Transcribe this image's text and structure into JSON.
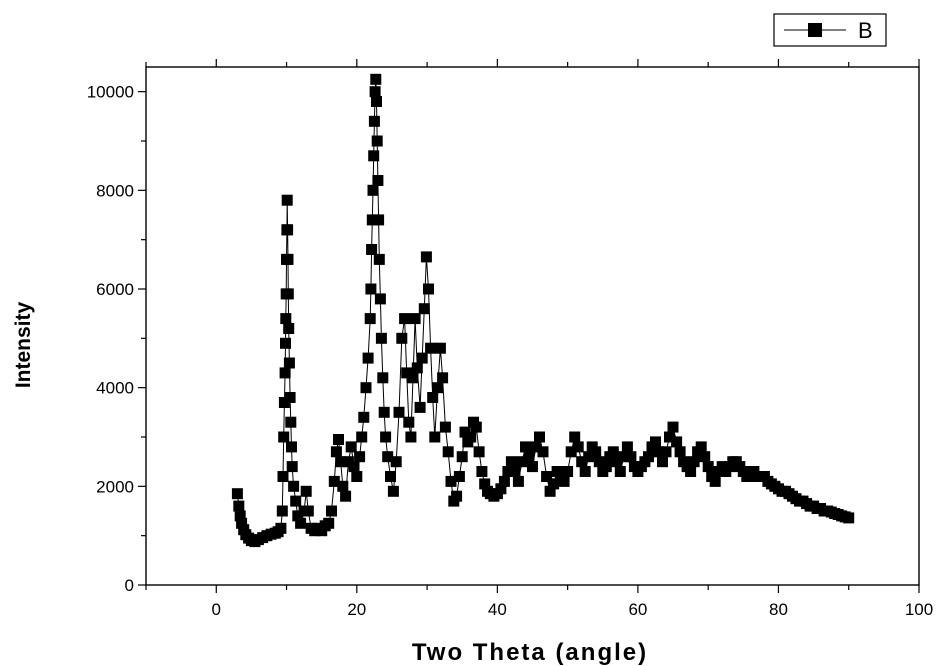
{
  "chart_data": {
    "type": "scatter",
    "title": "",
    "xlabel": "Two Theta (angle)",
    "ylabel": "Intensity",
    "xlim": [
      -10,
      100
    ],
    "ylim": [
      0,
      10500
    ],
    "xticks": [
      0,
      20,
      40,
      60,
      80,
      100
    ],
    "yticks": [
      0,
      2000,
      4000,
      6000,
      8000,
      10000
    ],
    "x_minor_step": 10,
    "y_minor_step": 1000,
    "grid": false,
    "legend": {
      "position": "top-right",
      "entries": [
        "B"
      ]
    },
    "marker": "filled-square",
    "line_style": "thin-connecting",
    "color": "#000000",
    "series": [
      {
        "name": "B",
        "points": [
          [
            3.0,
            1850
          ],
          [
            3.2,
            1600
          ],
          [
            3.4,
            1400
          ],
          [
            3.6,
            1250
          ],
          [
            3.9,
            1120
          ],
          [
            4.2,
            1020
          ],
          [
            4.6,
            950
          ],
          [
            5.0,
            900
          ],
          [
            5.5,
            880
          ],
          [
            6.0,
            920
          ],
          [
            6.6,
            960
          ],
          [
            7.2,
            1000
          ],
          [
            7.8,
            1030
          ],
          [
            8.4,
            1050
          ],
          [
            8.8,
            1080
          ],
          [
            9.2,
            1150
          ],
          [
            9.4,
            1500
          ],
          [
            9.5,
            2200
          ],
          [
            9.6,
            3000
          ],
          [
            9.7,
            3700
          ],
          [
            9.8,
            4300
          ],
          [
            9.85,
            4900
          ],
          [
            9.9,
            5400
          ],
          [
            9.95,
            5900
          ],
          [
            10.0,
            6600
          ],
          [
            10.05,
            7200
          ],
          [
            10.1,
            7800
          ],
          [
            10.15,
            7200
          ],
          [
            10.2,
            6600
          ],
          [
            10.25,
            5900
          ],
          [
            10.3,
            5200
          ],
          [
            10.4,
            4500
          ],
          [
            10.5,
            3800
          ],
          [
            10.6,
            3300
          ],
          [
            10.7,
            2800
          ],
          [
            10.8,
            2400
          ],
          [
            11.0,
            2000
          ],
          [
            11.3,
            1700
          ],
          [
            11.6,
            1400
          ],
          [
            12.0,
            1250
          ],
          [
            12.5,
            1500
          ],
          [
            12.8,
            1900
          ],
          [
            13.1,
            1500
          ],
          [
            13.5,
            1150
          ],
          [
            14.0,
            1100
          ],
          [
            14.5,
            1150
          ],
          [
            15.0,
            1100
          ],
          [
            15.5,
            1200
          ],
          [
            16.0,
            1250
          ],
          [
            16.4,
            1500
          ],
          [
            16.8,
            2100
          ],
          [
            17.1,
            2700
          ],
          [
            17.4,
            2950
          ],
          [
            17.7,
            2500
          ],
          [
            18.0,
            2000
          ],
          [
            18.4,
            1800
          ],
          [
            18.8,
            2500
          ],
          [
            19.2,
            2800
          ],
          [
            19.6,
            2400
          ],
          [
            20.0,
            2200
          ],
          [
            20.4,
            2600
          ],
          [
            20.7,
            3000
          ],
          [
            21.0,
            3400
          ],
          [
            21.3,
            4000
          ],
          [
            21.6,
            4600
          ],
          [
            21.9,
            5400
          ],
          [
            22.0,
            6000
          ],
          [
            22.1,
            6800
          ],
          [
            22.2,
            7400
          ],
          [
            22.3,
            8000
          ],
          [
            22.4,
            8700
          ],
          [
            22.5,
            9400
          ],
          [
            22.6,
            10000
          ],
          [
            22.7,
            10250
          ],
          [
            22.8,
            9800
          ],
          [
            22.9,
            9000
          ],
          [
            23.0,
            8200
          ],
          [
            23.1,
            7400
          ],
          [
            23.2,
            6600
          ],
          [
            23.35,
            5800
          ],
          [
            23.5,
            5000
          ],
          [
            23.7,
            4200
          ],
          [
            23.9,
            3500
          ],
          [
            24.1,
            3000
          ],
          [
            24.4,
            2600
          ],
          [
            24.8,
            2200
          ],
          [
            25.2,
            1900
          ],
          [
            25.6,
            2500
          ],
          [
            26.0,
            3500
          ],
          [
            26.4,
            5000
          ],
          [
            26.8,
            5400
          ],
          [
            27.1,
            4300
          ],
          [
            27.4,
            3300
          ],
          [
            27.7,
            3000
          ],
          [
            28.0,
            4200
          ],
          [
            28.3,
            5400
          ],
          [
            28.6,
            4400
          ],
          [
            29.0,
            3600
          ],
          [
            29.3,
            4600
          ],
          [
            29.6,
            5600
          ],
          [
            29.9,
            6650
          ],
          [
            30.2,
            6000
          ],
          [
            30.5,
            4800
          ],
          [
            30.8,
            3800
          ],
          [
            31.1,
            3000
          ],
          [
            31.5,
            4000
          ],
          [
            31.9,
            4800
          ],
          [
            32.2,
            4200
          ],
          [
            32.6,
            3200
          ],
          [
            33.0,
            2700
          ],
          [
            33.4,
            2100
          ],
          [
            33.8,
            1700
          ],
          [
            34.2,
            1800
          ],
          [
            34.6,
            2200
          ],
          [
            35.0,
            2600
          ],
          [
            35.4,
            3100
          ],
          [
            35.8,
            2900
          ],
          [
            36.2,
            3000
          ],
          [
            36.6,
            3300
          ],
          [
            37.0,
            3200
          ],
          [
            37.4,
            2700
          ],
          [
            37.8,
            2300
          ],
          [
            38.2,
            2050
          ],
          [
            38.6,
            1900
          ],
          [
            39.0,
            1850
          ],
          [
            39.5,
            1800
          ],
          [
            40.0,
            1850
          ],
          [
            40.5,
            1950
          ],
          [
            41.0,
            2100
          ],
          [
            41.5,
            2300
          ],
          [
            42.0,
            2500
          ],
          [
            42.5,
            2300
          ],
          [
            43.0,
            2100
          ],
          [
            43.5,
            2500
          ],
          [
            44.0,
            2800
          ],
          [
            44.5,
            2600
          ],
          [
            45.0,
            2400
          ],
          [
            45.5,
            2800
          ],
          [
            46.0,
            3000
          ],
          [
            46.5,
            2700
          ],
          [
            47.0,
            2200
          ],
          [
            47.5,
            1900
          ],
          [
            48.0,
            2050
          ],
          [
            48.5,
            2300
          ],
          [
            49.0,
            2200
          ],
          [
            49.5,
            2100
          ],
          [
            50.0,
            2300
          ],
          [
            50.5,
            2700
          ],
          [
            51.0,
            3000
          ],
          [
            51.5,
            2800
          ],
          [
            52.0,
            2500
          ],
          [
            52.5,
            2300
          ],
          [
            53.0,
            2600
          ],
          [
            53.5,
            2800
          ],
          [
            54.0,
            2700
          ],
          [
            54.5,
            2500
          ],
          [
            55.0,
            2300
          ],
          [
            55.5,
            2400
          ],
          [
            56.0,
            2600
          ],
          [
            56.5,
            2700
          ],
          [
            57.0,
            2500
          ],
          [
            57.5,
            2300
          ],
          [
            58.0,
            2600
          ],
          [
            58.5,
            2800
          ],
          [
            59.0,
            2600
          ],
          [
            59.5,
            2400
          ],
          [
            60.0,
            2300
          ],
          [
            60.5,
            2400
          ],
          [
            61.0,
            2500
          ],
          [
            61.5,
            2600
          ],
          [
            62.0,
            2800
          ],
          [
            62.5,
            2900
          ],
          [
            63.0,
            2700
          ],
          [
            63.5,
            2500
          ],
          [
            64.0,
            2700
          ],
          [
            64.5,
            3000
          ],
          [
            65.0,
            3200
          ],
          [
            65.5,
            2900
          ],
          [
            66.0,
            2700
          ],
          [
            66.5,
            2500
          ],
          [
            67.0,
            2400
          ],
          [
            67.5,
            2300
          ],
          [
            68.0,
            2500
          ],
          [
            68.5,
            2700
          ],
          [
            69.0,
            2800
          ],
          [
            69.5,
            2600
          ],
          [
            70.0,
            2400
          ],
          [
            70.5,
            2200
          ],
          [
            71.0,
            2100
          ],
          [
            71.5,
            2300
          ],
          [
            72.0,
            2400
          ],
          [
            72.5,
            2300
          ],
          [
            73.0,
            2400
          ],
          [
            73.5,
            2500
          ],
          [
            74.0,
            2500
          ],
          [
            74.5,
            2400
          ],
          [
            75.0,
            2300
          ],
          [
            75.5,
            2200
          ],
          [
            76.0,
            2300
          ],
          [
            76.5,
            2300
          ],
          [
            77.0,
            2200
          ],
          [
            77.5,
            2200
          ],
          [
            78.0,
            2200
          ],
          [
            78.5,
            2100
          ],
          [
            79.0,
            2050
          ],
          [
            79.5,
            2000
          ],
          [
            80.0,
            1950
          ],
          [
            80.5,
            1900
          ],
          [
            81.0,
            1900
          ],
          [
            81.5,
            1850
          ],
          [
            82.0,
            1800
          ],
          [
            82.5,
            1750
          ],
          [
            83.0,
            1700
          ],
          [
            83.5,
            1700
          ],
          [
            84.0,
            1650
          ],
          [
            84.5,
            1600
          ],
          [
            85.0,
            1600
          ],
          [
            85.5,
            1550
          ],
          [
            86.0,
            1550
          ],
          [
            86.5,
            1500
          ],
          [
            87.0,
            1500
          ],
          [
            87.5,
            1480
          ],
          [
            88.0,
            1450
          ],
          [
            88.5,
            1430
          ],
          [
            89.0,
            1400
          ],
          [
            89.5,
            1380
          ],
          [
            90.0,
            1360
          ]
        ]
      }
    ]
  }
}
